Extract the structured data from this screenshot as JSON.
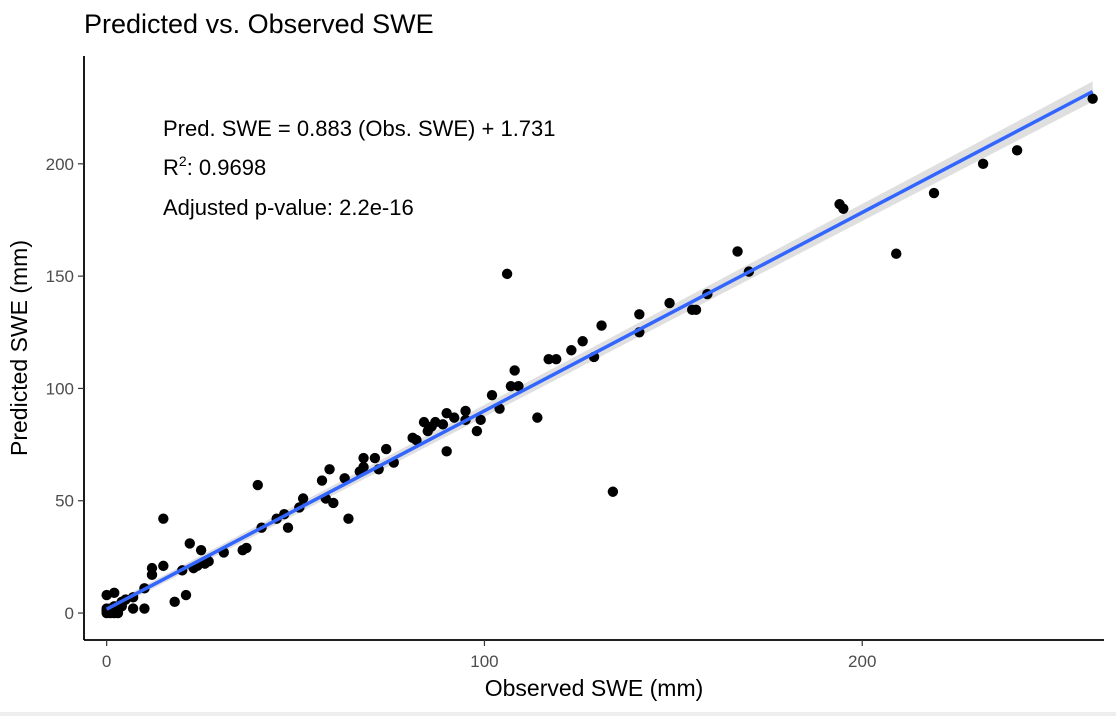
{
  "chart_data": {
    "type": "scatter",
    "title": "Predicted vs. Observed SWE",
    "xlabel": "Observed SWE (mm)",
    "ylabel": "Predicted SWE (mm)",
    "xlim": [
      -6,
      264
    ],
    "ylim": [
      -12,
      248
    ],
    "xticks": [
      0,
      100,
      200
    ],
    "yticks": [
      0,
      50,
      100,
      150,
      200
    ],
    "xtick_labels": [
      "0",
      "100",
      "200"
    ],
    "ytick_labels": [
      "0",
      "50",
      "100",
      "150",
      "200"
    ],
    "grid": false,
    "legend": "none",
    "annotations": {
      "equation": "Pred. SWE = 0.883 (Obs. SWE) + 1.731",
      "r2_label": "R",
      "r2_sup": "2",
      "r2_value": ": 0.9698",
      "pvalue": "Adjusted p-value: 2.2e-16"
    },
    "regression": {
      "slope": 0.883,
      "intercept": 1.731,
      "x_range": [
        0,
        261
      ],
      "band_halfwidth": [
        1.5,
        4.5
      ]
    },
    "colors": {
      "points": "#000000",
      "line": "#3366ff",
      "band": "#d9d9d9"
    },
    "points": [
      {
        "x": 0,
        "y": 0
      },
      {
        "x": 0,
        "y": 1
      },
      {
        "x": 0,
        "y": 2
      },
      {
        "x": 0,
        "y": 8
      },
      {
        "x": 1,
        "y": 0
      },
      {
        "x": 1,
        "y": 1
      },
      {
        "x": 1,
        "y": 2
      },
      {
        "x": 2,
        "y": 0
      },
      {
        "x": 2,
        "y": 1
      },
      {
        "x": 2,
        "y": 3
      },
      {
        "x": 2,
        "y": 9
      },
      {
        "x": 3,
        "y": 0
      },
      {
        "x": 3,
        "y": 1
      },
      {
        "x": 3,
        "y": 2
      },
      {
        "x": 4,
        "y": 3
      },
      {
        "x": 4,
        "y": 5
      },
      {
        "x": 5,
        "y": 6
      },
      {
        "x": 7,
        "y": 7
      },
      {
        "x": 7,
        "y": 2
      },
      {
        "x": 10,
        "y": 2
      },
      {
        "x": 10,
        "y": 11
      },
      {
        "x": 12,
        "y": 17
      },
      {
        "x": 12,
        "y": 20
      },
      {
        "x": 15,
        "y": 21
      },
      {
        "x": 15,
        "y": 42
      },
      {
        "x": 18,
        "y": 5
      },
      {
        "x": 20,
        "y": 19
      },
      {
        "x": 21,
        "y": 8
      },
      {
        "x": 22,
        "y": 31
      },
      {
        "x": 23,
        "y": 20
      },
      {
        "x": 24,
        "y": 21
      },
      {
        "x": 25,
        "y": 28
      },
      {
        "x": 26,
        "y": 22
      },
      {
        "x": 27,
        "y": 23
      },
      {
        "x": 31,
        "y": 27
      },
      {
        "x": 36,
        "y": 28
      },
      {
        "x": 37,
        "y": 29
      },
      {
        "x": 40,
        "y": 57
      },
      {
        "x": 41,
        "y": 38
      },
      {
        "x": 45,
        "y": 42
      },
      {
        "x": 47,
        "y": 44
      },
      {
        "x": 48,
        "y": 38
      },
      {
        "x": 51,
        "y": 47
      },
      {
        "x": 52,
        "y": 51
      },
      {
        "x": 57,
        "y": 59
      },
      {
        "x": 58,
        "y": 51
      },
      {
        "x": 59,
        "y": 64
      },
      {
        "x": 60,
        "y": 49
      },
      {
        "x": 63,
        "y": 60
      },
      {
        "x": 64,
        "y": 42
      },
      {
        "x": 67,
        "y": 63
      },
      {
        "x": 68,
        "y": 69
      },
      {
        "x": 68,
        "y": 65
      },
      {
        "x": 71,
        "y": 69
      },
      {
        "x": 72,
        "y": 64
      },
      {
        "x": 74,
        "y": 73
      },
      {
        "x": 76,
        "y": 67
      },
      {
        "x": 81,
        "y": 78
      },
      {
        "x": 82,
        "y": 77
      },
      {
        "x": 84,
        "y": 85
      },
      {
        "x": 85,
        "y": 81
      },
      {
        "x": 86,
        "y": 83
      },
      {
        "x": 87,
        "y": 85
      },
      {
        "x": 89,
        "y": 84
      },
      {
        "x": 90,
        "y": 89
      },
      {
        "x": 90,
        "y": 72
      },
      {
        "x": 92,
        "y": 87
      },
      {
        "x": 95,
        "y": 90
      },
      {
        "x": 95,
        "y": 86
      },
      {
        "x": 98,
        "y": 81
      },
      {
        "x": 99,
        "y": 86
      },
      {
        "x": 102,
        "y": 97
      },
      {
        "x": 104,
        "y": 91
      },
      {
        "x": 106,
        "y": 151
      },
      {
        "x": 107,
        "y": 101
      },
      {
        "x": 108,
        "y": 108
      },
      {
        "x": 109,
        "y": 101
      },
      {
        "x": 114,
        "y": 87
      },
      {
        "x": 117,
        "y": 113
      },
      {
        "x": 119,
        "y": 113
      },
      {
        "x": 123,
        "y": 117
      },
      {
        "x": 126,
        "y": 121
      },
      {
        "x": 129,
        "y": 114
      },
      {
        "x": 131,
        "y": 128
      },
      {
        "x": 134,
        "y": 54
      },
      {
        "x": 141,
        "y": 133
      },
      {
        "x": 141,
        "y": 125
      },
      {
        "x": 149,
        "y": 138
      },
      {
        "x": 155,
        "y": 135
      },
      {
        "x": 156,
        "y": 135
      },
      {
        "x": 159,
        "y": 142
      },
      {
        "x": 167,
        "y": 161
      },
      {
        "x": 170,
        "y": 152
      },
      {
        "x": 194,
        "y": 182
      },
      {
        "x": 195,
        "y": 180
      },
      {
        "x": 209,
        "y": 160
      },
      {
        "x": 219,
        "y": 187
      },
      {
        "x": 232,
        "y": 200
      },
      {
        "x": 241,
        "y": 206
      },
      {
        "x": 261,
        "y": 229
      }
    ]
  }
}
